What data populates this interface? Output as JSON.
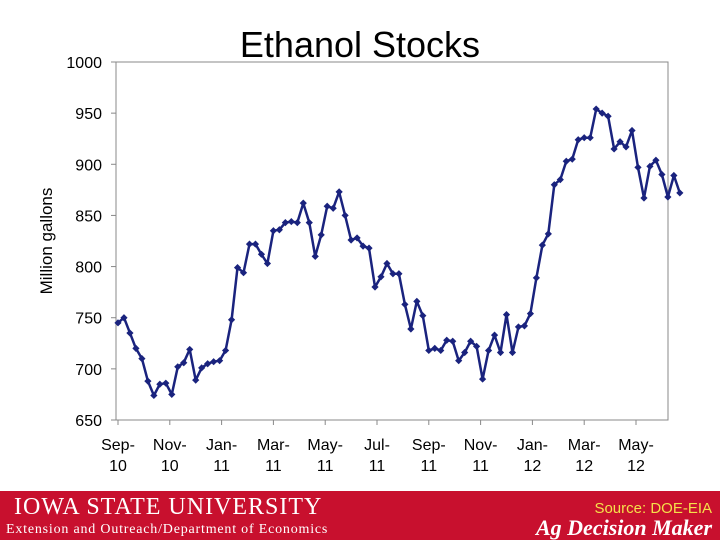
{
  "chart_data": {
    "type": "line",
    "title": "Ethanol Stocks",
    "ylabel": "Million gallons",
    "xlabel": "",
    "ylim": [
      650,
      1000
    ],
    "yticks": [
      650,
      700,
      750,
      800,
      850,
      900,
      950,
      1000
    ],
    "grid": false,
    "legend": "none",
    "x_tick_labels": [
      {
        "month": 0,
        "line1": "Sep-",
        "line2": "10"
      },
      {
        "month": 2,
        "line1": "Nov-",
        "line2": "10"
      },
      {
        "month": 4,
        "line1": "Jan-",
        "line2": "11"
      },
      {
        "month": 6,
        "line1": "Mar-",
        "line2": "11"
      },
      {
        "month": 8,
        "line1": "May-",
        "line2": "11"
      },
      {
        "month": 10,
        "line1": "Jul-",
        "line2": "11"
      },
      {
        "month": 12,
        "line1": "Sep-",
        "line2": "11"
      },
      {
        "month": 14,
        "line1": "Nov-",
        "line2": "11"
      },
      {
        "month": 16,
        "line1": "Jan-",
        "line2": "12"
      },
      {
        "month": 18,
        "line1": "Mar-",
        "line2": "12"
      },
      {
        "month": 20,
        "line1": "May-",
        "line2": "12"
      }
    ],
    "series_color": "#1a237e",
    "series": [
      {
        "frequency": "weekly",
        "start": "Sep-10",
        "values": [
          745,
          750,
          735,
          720,
          710,
          688,
          674,
          685,
          686,
          675,
          702,
          706,
          719,
          689,
          701,
          705,
          707,
          708,
          718,
          748,
          799,
          794,
          822,
          822,
          812,
          803,
          835,
          836,
          843,
          844,
          843,
          862,
          843,
          810,
          831,
          859,
          857,
          873,
          850,
          826,
          828,
          820,
          818,
          780,
          790,
          803,
          793,
          793,
          763,
          739,
          766,
          752,
          718,
          720,
          718,
          728,
          727,
          708,
          716,
          727,
          722,
          690,
          718,
          733,
          716,
          753,
          716,
          741,
          742,
          754,
          789,
          821,
          832,
          880,
          885,
          903,
          905,
          924,
          926,
          926,
          954,
          950,
          947,
          915,
          922,
          917,
          933,
          897,
          867,
          898,
          904,
          890,
          868,
          889,
          872
        ]
      }
    ]
  },
  "footer": {
    "university": "IOWA STATE UNIVERSITY",
    "department": "Extension and Outreach/Department of Economics",
    "source": "Source: DOE-EIA",
    "brand": "Ag Decision Maker"
  },
  "colors": {
    "footer_bg": "#c8102e",
    "source_text": "#f5e04a",
    "axis": "#888888"
  }
}
